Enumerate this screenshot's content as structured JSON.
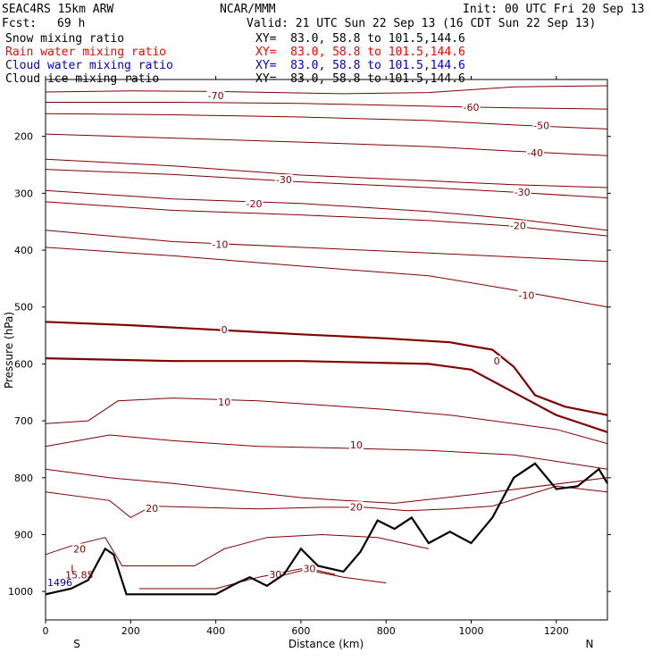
{
  "header": {
    "model": "SEAC4RS 15km ARW",
    "center": "NCAR/MMM",
    "init": "Init: 00 UTC Fri 20 Sep 13",
    "fcst_label": "Fcst:",
    "fcst_value": "69 h",
    "valid": "Valid: 21 UTC Sun 22 Sep 13 (16 CDT Sun 22 Sep 13)",
    "fields": [
      {
        "name": "Snow mixing ratio",
        "xy": "XY=  83.0, 58.8 to 101.5,144.6",
        "color": "#000000"
      },
      {
        "name": "Rain water mixing ratio",
        "xy": "XY=  83.0, 58.8 to 101.5,144.6",
        "color": "#ff0000"
      },
      {
        "name": "Cloud water mixing ratio",
        "xy": "XY=  83.0, 58.8 to 101.5,144.6",
        "color": "#0000cc"
      },
      {
        "name": "Cloud ice mixing ratio",
        "xy": "XY=  83.0, 58.8 to 101.5,144.6",
        "color": "#000000"
      }
    ]
  },
  "chart_data": {
    "type": "line",
    "title": "",
    "xlabel": "Distance (km)",
    "ylabel": "Pressure (hPa)",
    "xlim": [
      0,
      1320
    ],
    "ylim": [
      1050,
      100
    ],
    "x_ticks": [
      0,
      200,
      400,
      600,
      800,
      1000,
      1200
    ],
    "y_ticks": [
      200,
      300,
      400,
      500,
      600,
      700,
      800,
      900,
      1000
    ],
    "x_end_labels": {
      "left": "S",
      "right": "N"
    },
    "contour_color": "#800000",
    "terrain_color": "#000000",
    "annotation_color": "#0000aa",
    "temperature_contours_C": [
      {
        "level": -70,
        "label": "-70",
        "label_at": [
          400,
          128
        ],
        "points": [
          [
            0,
            122
          ],
          [
            200,
            120
          ],
          [
            400,
            121
          ],
          [
            700,
            125
          ],
          [
            900,
            123
          ],
          [
            1100,
            113
          ],
          [
            1320,
            111
          ]
        ]
      },
      {
        "level": -60,
        "label": "-60",
        "label_at": [
          1000,
          149
        ],
        "points": [
          [
            0,
            140
          ],
          [
            300,
            140
          ],
          [
            600,
            142
          ],
          [
            900,
            147
          ],
          [
            1100,
            150
          ],
          [
            1320,
            152
          ]
        ]
      },
      {
        "level": -50,
        "label": "-50",
        "label_at": [
          1165,
          181
        ],
        "points": [
          [
            0,
            160
          ],
          [
            300,
            162
          ],
          [
            600,
            166
          ],
          [
            900,
            172
          ],
          [
            1100,
            180
          ],
          [
            1320,
            187
          ]
        ]
      },
      {
        "level": -40,
        "label": "-40",
        "label_at": [
          1150,
          229
        ],
        "points": [
          [
            0,
            196
          ],
          [
            300,
            203
          ],
          [
            600,
            210
          ],
          [
            900,
            218
          ],
          [
            1100,
            226
          ],
          [
            1320,
            234
          ]
        ]
      },
      {
        "level": -30,
        "label": "-30",
        "label_at": [
          560,
          276
        ],
        "points": [
          [
            0,
            240
          ],
          [
            300,
            252
          ],
          [
            600,
            268
          ],
          [
            900,
            278
          ],
          [
            1100,
            285
          ],
          [
            1320,
            290
          ]
        ]
      },
      {
        "level": -30,
        "label": "-30",
        "label_at": [
          1120,
          298
        ],
        "points": [
          [
            0,
            258
          ],
          [
            300,
            267
          ],
          [
            600,
            280
          ],
          [
            900,
            290
          ],
          [
            1100,
            298
          ],
          [
            1320,
            308
          ]
        ]
      },
      {
        "level": -20,
        "label": "-20",
        "label_at": [
          490,
          318
        ],
        "points": [
          [
            0,
            295
          ],
          [
            300,
            310
          ],
          [
            600,
            318
          ],
          [
            900,
            332
          ],
          [
            1100,
            345
          ],
          [
            1320,
            365
          ]
        ]
      },
      {
        "level": -20,
        "label": "-20",
        "label_at": [
          1110,
          357
        ],
        "points": [
          [
            0,
            315
          ],
          [
            300,
            330
          ],
          [
            600,
            338
          ],
          [
            900,
            348
          ],
          [
            1100,
            358
          ],
          [
            1320,
            375
          ]
        ]
      },
      {
        "level": -10,
        "label": "-10",
        "label_at": [
          410,
          390
        ],
        "points": [
          [
            0,
            365
          ],
          [
            300,
            385
          ],
          [
            600,
            395
          ],
          [
            900,
            405
          ],
          [
            1100,
            412
          ],
          [
            1320,
            420
          ]
        ]
      },
      {
        "level": -10,
        "label": "-10",
        "label_at": [
          1130,
          479
        ],
        "points": [
          [
            0,
            395
          ],
          [
            300,
            410
          ],
          [
            600,
            428
          ],
          [
            900,
            445
          ],
          [
            1100,
            470
          ],
          [
            1320,
            500
          ]
        ]
      },
      {
        "level": 0,
        "label": "0",
        "label_at": [
          420,
          540
        ],
        "points": [
          [
            0,
            526
          ],
          [
            200,
            532
          ],
          [
            400,
            540
          ],
          [
            600,
            548
          ],
          [
            800,
            555
          ],
          [
            950,
            562
          ],
          [
            1050,
            575
          ],
          [
            1100,
            605
          ],
          [
            1150,
            655
          ],
          [
            1220,
            675
          ],
          [
            1320,
            690
          ]
        ]
      },
      {
        "level": 0,
        "label": "0",
        "label_at": [
          1060,
          595
        ],
        "points": [
          [
            0,
            590
          ],
          [
            300,
            595
          ],
          [
            600,
            595
          ],
          [
            900,
            600
          ],
          [
            1000,
            610
          ],
          [
            1100,
            650
          ],
          [
            1200,
            690
          ],
          [
            1320,
            720
          ]
        ]
      },
      {
        "level": 10,
        "label": "10",
        "label_at": [
          420,
          667
        ],
        "points": [
          [
            0,
            705
          ],
          [
            100,
            700
          ],
          [
            170,
            665
          ],
          [
            300,
            660
          ],
          [
            500,
            665
          ],
          [
            700,
            675
          ],
          [
            800,
            680
          ],
          [
            950,
            690
          ],
          [
            1100,
            705
          ],
          [
            1200,
            715
          ],
          [
            1320,
            740
          ]
        ]
      },
      {
        "level": 10,
        "label": "10",
        "label_at": [
          730,
          742
        ],
        "points": [
          [
            0,
            745
          ],
          [
            150,
            725
          ],
          [
            300,
            735
          ],
          [
            500,
            745
          ],
          [
            700,
            748
          ],
          [
            900,
            752
          ],
          [
            1100,
            760
          ],
          [
            1320,
            785
          ]
        ]
      },
      {
        "level": 20,
        "label": "20",
        "label_at": [
          250,
          854
        ],
        "points": [
          [
            0,
            825
          ],
          [
            150,
            840
          ],
          [
            200,
            870
          ],
          [
            250,
            850
          ],
          [
            350,
            852
          ],
          [
            500,
            855
          ],
          [
            650,
            852
          ],
          [
            750,
            852
          ],
          [
            850,
            858
          ],
          [
            950,
            855
          ],
          [
            1050,
            850
          ],
          [
            1200,
            815
          ],
          [
            1320,
            825
          ]
        ]
      },
      {
        "level": 20,
        "label": "20",
        "label_at": [
          730,
          851
        ],
        "points": [
          [
            0,
            785
          ],
          [
            150,
            800
          ],
          [
            300,
            810
          ],
          [
            480,
            825
          ],
          [
            600,
            835
          ],
          [
            700,
            840
          ],
          [
            820,
            845
          ],
          [
            1000,
            830
          ],
          [
            1320,
            800
          ]
        ]
      },
      {
        "level": 20,
        "label": "20",
        "label_at": [
          80,
          925
        ],
        "points": [
          [
            0,
            935
          ],
          [
            60,
            920
          ],
          [
            140,
            905
          ],
          [
            180,
            955
          ],
          [
            350,
            955
          ],
          [
            420,
            925
          ],
          [
            520,
            905
          ],
          [
            650,
            900
          ],
          [
            780,
            905
          ],
          [
            900,
            925
          ]
        ]
      },
      {
        "level": 30,
        "label": "30",
        "label_at": [
          540,
          970
        ],
        "points": [
          [
            220,
            995
          ],
          [
            400,
            995
          ],
          [
            500,
            975
          ],
          [
            600,
            960
          ],
          [
            700,
            975
          ],
          [
            800,
            985
          ]
        ]
      },
      {
        "level": 30,
        "label": "30",
        "label_at": [
          620,
          960
        ],
        "points": [
          [
            540,
            975
          ],
          [
            620,
            960
          ],
          [
            680,
            970
          ]
        ]
      }
    ],
    "terrain_surface_hPa": {
      "points": [
        [
          0,
          1005
        ],
        [
          60,
          995
        ],
        [
          100,
          980
        ],
        [
          140,
          925
        ],
        [
          160,
          935
        ],
        [
          190,
          1005
        ],
        [
          400,
          1005
        ],
        [
          450,
          985
        ],
        [
          480,
          975
        ],
        [
          520,
          990
        ],
        [
          560,
          970
        ],
        [
          600,
          925
        ],
        [
          640,
          955
        ],
        [
          700,
          965
        ],
        [
          740,
          930
        ],
        [
          780,
          875
        ],
        [
          820,
          890
        ],
        [
          860,
          870
        ],
        [
          900,
          915
        ],
        [
          950,
          895
        ],
        [
          1000,
          915
        ],
        [
          1050,
          870
        ],
        [
          1100,
          800
        ],
        [
          1150,
          775
        ],
        [
          1200,
          820
        ],
        [
          1250,
          815
        ],
        [
          1300,
          785
        ],
        [
          1320,
          810
        ]
      ]
    },
    "annotations": [
      {
        "text": "L",
        "at": [
          55,
          960
        ],
        "color": "#800000"
      },
      {
        "text": "15.85",
        "at": [
          42,
          971
        ],
        "color": "#800000"
      },
      {
        "text": "1496",
        "at": [
          0,
          984
        ],
        "color": "#0000aa"
      }
    ]
  }
}
